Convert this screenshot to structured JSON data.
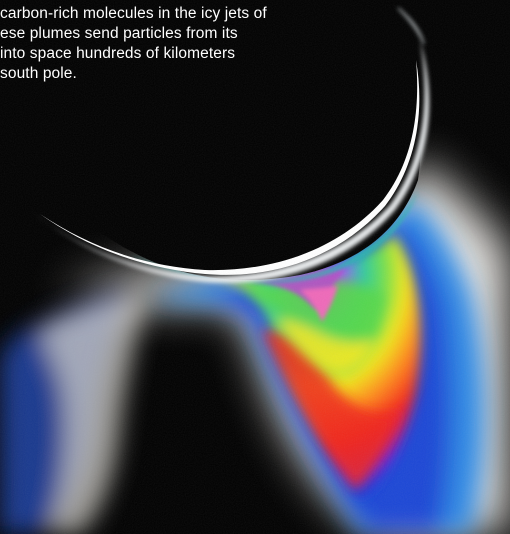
{
  "caption": {
    "lines": [
      "carbon-rich molecules in the icy jets of",
      "ese plumes send particles from its",
      " into space hundreds of kilometers",
      "south pole."
    ]
  },
  "image": {
    "subject": "enceladus-plume-false-color",
    "background_color": "#000000"
  }
}
